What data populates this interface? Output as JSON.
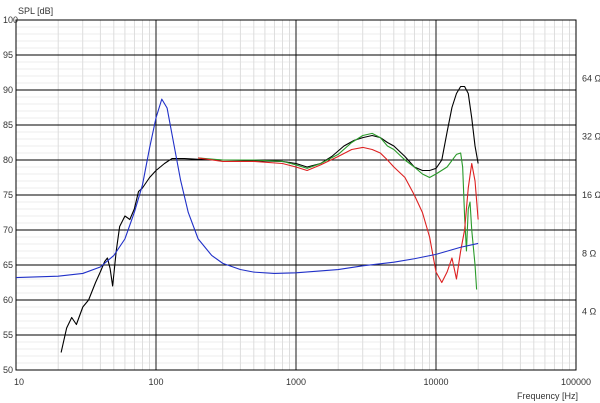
{
  "chart_data": {
    "type": "line",
    "title": "",
    "ylabel": "SPL [dB]",
    "xlabel": "Frequency [Hz]",
    "xscale": "log",
    "xlim": [
      10,
      100000
    ],
    "ylim": [
      50,
      100
    ],
    "y2scale": "log",
    "y2lim": [
      2,
      128
    ],
    "x_ticks": [
      {
        "value": 10,
        "label": "10"
      },
      {
        "value": 100,
        "label": "100"
      },
      {
        "value": 1000,
        "label": "1000"
      },
      {
        "value": 10000,
        "label": "10000"
      },
      {
        "value": 100000,
        "label": "100000"
      }
    ],
    "y_ticks": [
      {
        "value": 100,
        "label": "100"
      },
      {
        "value": 95,
        "label": "95"
      },
      {
        "value": 90,
        "label": "90"
      },
      {
        "value": 85,
        "label": "85"
      },
      {
        "value": 80,
        "label": "80"
      },
      {
        "value": 75,
        "label": "75"
      },
      {
        "value": 70,
        "label": "70"
      },
      {
        "value": 65,
        "label": "65"
      },
      {
        "value": 60,
        "label": "60"
      },
      {
        "value": 55,
        "label": "55"
      },
      {
        "value": 50,
        "label": "50"
      }
    ],
    "y2_ticks": [
      {
        "value": 64,
        "label": "64 Ω"
      },
      {
        "value": 32,
        "label": "32 Ω"
      },
      {
        "value": 16,
        "label": "16 Ω"
      },
      {
        "value": 8,
        "label": "8 Ω"
      },
      {
        "value": 4,
        "label": "4 Ω"
      }
    ],
    "grid": true,
    "series": [
      {
        "color": "#000000",
        "axis": "spl",
        "points": [
          [
            21,
            52.5
          ],
          [
            23,
            56
          ],
          [
            25,
            57.5
          ],
          [
            27,
            56.5
          ],
          [
            30,
            59
          ],
          [
            33,
            60
          ],
          [
            37,
            62.5
          ],
          [
            40,
            64
          ],
          [
            43,
            65.5
          ],
          [
            45,
            66
          ],
          [
            47,
            64.5
          ],
          [
            49,
            62
          ],
          [
            52,
            67
          ],
          [
            55,
            70.5
          ],
          [
            60,
            72
          ],
          [
            65,
            71.5
          ],
          [
            70,
            73
          ],
          [
            75,
            75.5
          ],
          [
            80,
            76
          ],
          [
            90,
            77.5
          ],
          [
            100,
            78.5
          ],
          [
            115,
            79.5
          ],
          [
            130,
            80.2
          ],
          [
            160,
            80.2
          ],
          [
            200,
            80.1
          ],
          [
            300,
            80
          ],
          [
            500,
            79.9
          ],
          [
            800,
            79.8
          ],
          [
            1000,
            79.5
          ],
          [
            1200,
            79
          ],
          [
            1500,
            79.5
          ],
          [
            1800,
            80.5
          ],
          [
            2200,
            82
          ],
          [
            2600,
            82.8
          ],
          [
            3000,
            83.2
          ],
          [
            3500,
            83.5
          ],
          [
            4000,
            83.2
          ],
          [
            4500,
            82.5
          ],
          [
            5000,
            82
          ],
          [
            6000,
            80.5
          ],
          [
            7000,
            79
          ],
          [
            8000,
            78.5
          ],
          [
            9000,
            78.5
          ],
          [
            10000,
            78.8
          ],
          [
            11000,
            80
          ],
          [
            12000,
            84
          ],
          [
            13000,
            87.5
          ],
          [
            14000,
            89.5
          ],
          [
            15000,
            90.5
          ],
          [
            16000,
            90.5
          ],
          [
            17000,
            89.5
          ],
          [
            18000,
            86
          ],
          [
            19000,
            82
          ],
          [
            20000,
            79.5
          ]
        ]
      },
      {
        "color": "#2a9a2a",
        "axis": "spl",
        "points": [
          [
            200,
            80.3
          ],
          [
            300,
            80
          ],
          [
            500,
            80
          ],
          [
            800,
            79.8
          ],
          [
            1000,
            79.3
          ],
          [
            1200,
            78.8
          ],
          [
            1500,
            79.5
          ],
          [
            2000,
            80.8
          ],
          [
            2500,
            82.5
          ],
          [
            3000,
            83.5
          ],
          [
            3500,
            83.8
          ],
          [
            4000,
            83.2
          ],
          [
            4500,
            82
          ],
          [
            5000,
            81.5
          ],
          [
            6000,
            80
          ],
          [
            7000,
            79
          ],
          [
            8000,
            78
          ],
          [
            9000,
            77.5
          ],
          [
            10000,
            78
          ],
          [
            12000,
            79
          ],
          [
            14000,
            80.8
          ],
          [
            15000,
            81
          ],
          [
            15500,
            79
          ],
          [
            16000,
            72
          ],
          [
            16500,
            67
          ],
          [
            17000,
            73
          ],
          [
            17500,
            74
          ],
          [
            18000,
            70
          ],
          [
            19000,
            65
          ],
          [
            19500,
            61.5
          ]
        ]
      },
      {
        "color": "#dd2020",
        "axis": "spl",
        "points": [
          [
            200,
            80.3
          ],
          [
            300,
            79.8
          ],
          [
            500,
            79.8
          ],
          [
            800,
            79.5
          ],
          [
            1000,
            79
          ],
          [
            1200,
            78.5
          ],
          [
            1500,
            79.3
          ],
          [
            2000,
            80.5
          ],
          [
            2500,
            81.5
          ],
          [
            3000,
            81.8
          ],
          [
            3500,
            81.5
          ],
          [
            4000,
            81
          ],
          [
            4500,
            80
          ],
          [
            5000,
            79
          ],
          [
            6000,
            77.5
          ],
          [
            7000,
            75
          ],
          [
            8000,
            72.5
          ],
          [
            9000,
            69
          ],
          [
            10000,
            64
          ],
          [
            11000,
            62.5
          ],
          [
            12000,
            64
          ],
          [
            13000,
            66
          ],
          [
            14000,
            63
          ],
          [
            15000,
            67
          ],
          [
            16000,
            70
          ],
          [
            17000,
            76
          ],
          [
            18000,
            79.5
          ],
          [
            19000,
            77
          ],
          [
            20000,
            71.5
          ]
        ]
      },
      {
        "color": "#2030c8",
        "axis": "impedance",
        "points": [
          [
            10,
            6.0
          ],
          [
            20,
            6.1
          ],
          [
            30,
            6.3
          ],
          [
            40,
            6.8
          ],
          [
            50,
            7.8
          ],
          [
            60,
            9.5
          ],
          [
            70,
            13
          ],
          [
            80,
            18
          ],
          [
            90,
            28
          ],
          [
            100,
            40
          ],
          [
            110,
            50
          ],
          [
            120,
            45
          ],
          [
            130,
            33
          ],
          [
            150,
            19
          ],
          [
            170,
            13
          ],
          [
            200,
            9.5
          ],
          [
            250,
            7.8
          ],
          [
            300,
            7.1
          ],
          [
            400,
            6.6
          ],
          [
            500,
            6.4
          ],
          [
            700,
            6.3
          ],
          [
            1000,
            6.35
          ],
          [
            2000,
            6.6
          ],
          [
            3000,
            6.9
          ],
          [
            5000,
            7.2
          ],
          [
            7000,
            7.5
          ],
          [
            10000,
            7.9
          ],
          [
            15000,
            8.6
          ],
          [
            20000,
            9.0
          ]
        ]
      }
    ]
  }
}
